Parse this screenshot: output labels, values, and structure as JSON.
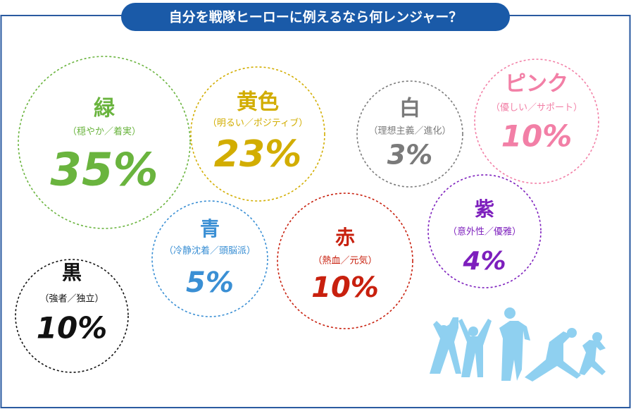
{
  "chart_data": {
    "type": "bubble",
    "title": "自分を戦隊ヒーローに例えるなら何レンジャー？",
    "categories": [
      "緑",
      "黄色",
      "白",
      "ピンク",
      "赤",
      "青",
      "黒",
      "紫"
    ],
    "descriptions": [
      "（穏やか／着実）",
      "（明るい／ポジティブ）",
      "（理想主義／進化）",
      "（優しい／サポート）",
      "（熱血／元気）",
      "（冷静沈着／頭脳派）",
      "（強者／独立）",
      "（意外性／優雅）"
    ],
    "values": [
      35,
      23,
      3,
      10,
      10,
      5,
      10,
      4
    ],
    "value_labels": [
      "35%",
      "23%",
      "3%",
      "10%",
      "10%",
      "5%",
      "10%",
      "4%"
    ],
    "colors": [
      "#6ab43e",
      "#d2ad00",
      "#7a7a7a",
      "#f27fa6",
      "#c8200e",
      "#3a8fd4",
      "#111111",
      "#7d1fbd"
    ]
  }
}
